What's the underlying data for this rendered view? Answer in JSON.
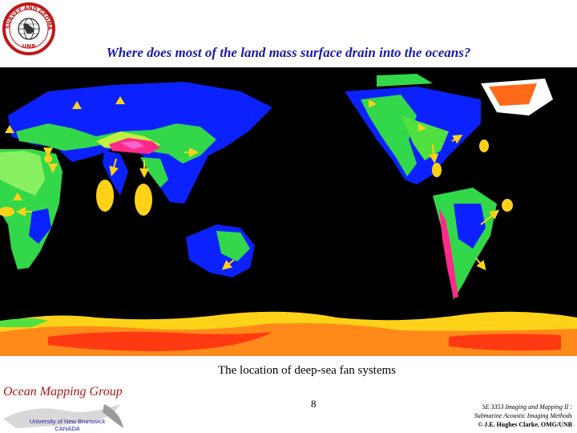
{
  "logo": {
    "arc_text": "SURVEY AND GEOMATICS ENGINEERING",
    "unb": "UNB"
  },
  "title": "Where does most of the land mass surface drain into the oceans?",
  "map": {
    "ocean_color": "#000000",
    "land_low_color": "#0b22ff",
    "land_mid_color": "#32d84a",
    "land_high_color": "#ff2a8a",
    "ice_color": "#ff4a14",
    "marker_color": "#ffd21a"
  },
  "caption": "The location of deep-sea fan systems",
  "footer": {
    "group_name": "Ocean Mapping Group",
    "university_line1": "University of New Brunswick",
    "university_line2": "CANADA",
    "page_number": "8",
    "course_line1": "SE 3353 Imaging and Mapping II :",
    "course_line2": "Submarine Acoustic Imaging Methods",
    "copyright": "© J.E. Hughes Clarke, OMG/UNB"
  }
}
